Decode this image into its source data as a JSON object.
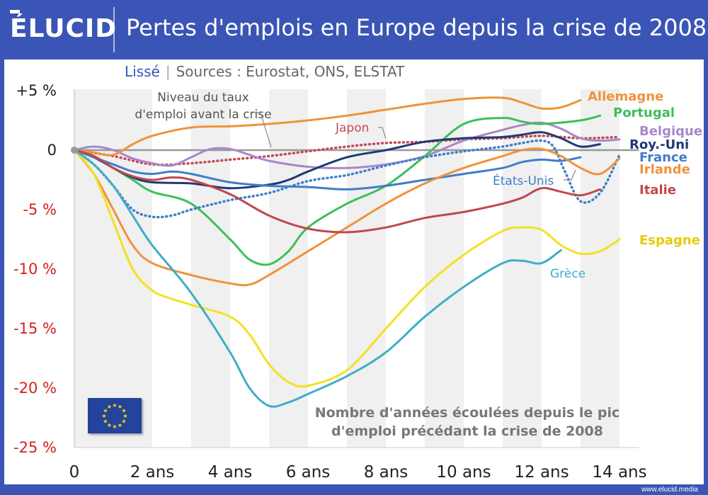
{
  "header": {
    "logo": "ÉLUCID",
    "title": "Pertes d'emplois en Europe depuis la crise de 2008"
  },
  "subtitle": {
    "smoothed": "Lissé",
    "sources": "Sources : Eurostat, ONS, ELSTAT"
  },
  "footer": {
    "url": "www.elucid.media"
  },
  "colors": {
    "brand": "#3a55b5",
    "eu_flag": "#24439c",
    "eu_star": "#ffdd00"
  },
  "chart_data": {
    "type": "line",
    "x_ticks": [
      {
        "value": 0,
        "label": "0"
      },
      {
        "value": 2,
        "label": "2 ans"
      },
      {
        "value": 4,
        "label": "4 ans"
      },
      {
        "value": 6,
        "label": "6 ans"
      },
      {
        "value": 8,
        "label": "8 ans"
      },
      {
        "value": 10,
        "label": "10 ans"
      },
      {
        "value": 12,
        "label": "12 ans"
      },
      {
        "value": 14,
        "label": "14 ans"
      }
    ],
    "y_ticks": [
      {
        "value": 5,
        "label": "+5 %",
        "color": "#222222"
      },
      {
        "value": 0,
        "label": "0",
        "color": "#222222"
      },
      {
        "value": -5,
        "label": "-5 %",
        "color": "#d42020"
      },
      {
        "value": -10,
        "label": "-10 %",
        "color": "#d42020"
      },
      {
        "value": -15,
        "label": "-15 %",
        "color": "#d42020"
      },
      {
        "value": -20,
        "label": "-20 %",
        "color": "#d42020"
      },
      {
        "value": -25,
        "label": "-25 %",
        "color": "#d42020"
      }
    ],
    "xlim": [
      0,
      14.5
    ],
    "ylim": [
      -25,
      5
    ],
    "x_axis_label": "Nombre d'années écoulées depuis le pic\nd'emploi précédant la crise de 2008",
    "reference_label": "Niveau du taux\nd'emploi avant la crise",
    "series": [
      {
        "name": "Allemagne",
        "color": "#f0923a",
        "dotted": false,
        "points": [
          [
            0,
            0
          ],
          [
            0.5,
            -0.2
          ],
          [
            1,
            -0.4
          ],
          [
            1.5,
            0.5
          ],
          [
            2,
            1.2
          ],
          [
            3,
            1.9
          ],
          [
            4,
            2.0
          ],
          [
            5,
            2.2
          ],
          [
            6,
            2.5
          ],
          [
            7,
            2.9
          ],
          [
            8,
            3.4
          ],
          [
            9,
            3.9
          ],
          [
            10,
            4.3
          ],
          [
            11,
            4.4
          ],
          [
            11.5,
            4.0
          ],
          [
            12,
            3.5
          ],
          [
            12.5,
            3.6
          ],
          [
            13,
            4.2
          ]
        ]
      },
      {
        "name": "Portugal",
        "color": "#3cbf5a",
        "dotted": false,
        "points": [
          [
            0,
            0
          ],
          [
            0.5,
            -0.5
          ],
          [
            1,
            -1.5
          ],
          [
            1.5,
            -2.5
          ],
          [
            2,
            -3.5
          ],
          [
            3,
            -4.5
          ],
          [
            4,
            -7.5
          ],
          [
            4.5,
            -9.2
          ],
          [
            5,
            -9.6
          ],
          [
            5.5,
            -8.5
          ],
          [
            6,
            -6.5
          ],
          [
            7,
            -4.5
          ],
          [
            8,
            -3
          ],
          [
            9,
            -0.5
          ],
          [
            10,
            2.2
          ],
          [
            11,
            2.7
          ],
          [
            11.5,
            2.4
          ],
          [
            12,
            2.2
          ],
          [
            13,
            2.5
          ],
          [
            13.5,
            2.9
          ]
        ]
      },
      {
        "name": "Belgique",
        "color": "#a888c8",
        "dotted": false,
        "points": [
          [
            0,
            0
          ],
          [
            0.5,
            0.3
          ],
          [
            1,
            0
          ],
          [
            1.5,
            -0.7
          ],
          [
            2,
            -1.1
          ],
          [
            2.5,
            -1.3
          ],
          [
            3,
            -0.6
          ],
          [
            3.5,
            0.1
          ],
          [
            4,
            0.1
          ],
          [
            4.5,
            -0.4
          ],
          [
            5,
            -0.9
          ],
          [
            6,
            -1.4
          ],
          [
            7,
            -1.5
          ],
          [
            8,
            -1.2
          ],
          [
            9,
            -0.5
          ],
          [
            10,
            0.8
          ],
          [
            11,
            1.7
          ],
          [
            11.5,
            2.1
          ],
          [
            12,
            2.3
          ],
          [
            12.5,
            1.8
          ],
          [
            13,
            1.0
          ],
          [
            13.5,
            0.8
          ],
          [
            14,
            0.9
          ]
        ]
      },
      {
        "name": "Roy.-Uni",
        "color": "#1f3a73",
        "dotted": false,
        "points": [
          [
            0,
            0
          ],
          [
            0.5,
            -0.6
          ],
          [
            1,
            -1.5
          ],
          [
            1.5,
            -2.3
          ],
          [
            2,
            -2.7
          ],
          [
            3,
            -2.8
          ],
          [
            4,
            -3.2
          ],
          [
            5,
            -2.9
          ],
          [
            5.5,
            -2.5
          ],
          [
            6,
            -1.8
          ],
          [
            7,
            -0.6
          ],
          [
            8,
            0
          ],
          [
            9,
            0.7
          ],
          [
            10,
            1.0
          ],
          [
            11,
            1.1
          ],
          [
            11.5,
            1.3
          ],
          [
            12,
            1.5
          ],
          [
            12.5,
            1.0
          ],
          [
            13,
            0.3
          ],
          [
            13.5,
            0.5
          ]
        ]
      },
      {
        "name": "France",
        "color": "#3e7ec8",
        "dotted": false,
        "points": [
          [
            0,
            0
          ],
          [
            0.5,
            -0.6
          ],
          [
            1,
            -1.2
          ],
          [
            1.5,
            -1.8
          ],
          [
            2,
            -2.0
          ],
          [
            2.5,
            -1.8
          ],
          [
            3,
            -2.0
          ],
          [
            4,
            -2.7
          ],
          [
            5,
            -3.0
          ],
          [
            6,
            -3.1
          ],
          [
            7,
            -3.3
          ],
          [
            8,
            -3.0
          ],
          [
            9,
            -2.5
          ],
          [
            10,
            -2.0
          ],
          [
            11,
            -1.5
          ],
          [
            11.5,
            -1.0
          ],
          [
            12,
            -0.8
          ],
          [
            12.5,
            -0.9
          ],
          [
            13,
            -0.6
          ]
        ]
      },
      {
        "name": "Irlande",
        "color": "#f0923a",
        "dotted": false,
        "points": [
          [
            0,
            0
          ],
          [
            0.5,
            -2
          ],
          [
            1,
            -5
          ],
          [
            1.5,
            -8
          ],
          [
            2,
            -9.5
          ],
          [
            3,
            -10.5
          ],
          [
            4,
            -11.2
          ],
          [
            4.5,
            -11.3
          ],
          [
            5,
            -10.5
          ],
          [
            6,
            -8.5
          ],
          [
            7,
            -6.5
          ],
          [
            8,
            -4.5
          ],
          [
            9,
            -2.8
          ],
          [
            10,
            -1.5
          ],
          [
            11,
            -0.5
          ],
          [
            11.5,
            0
          ],
          [
            12,
            0.1
          ],
          [
            12.5,
            -0.5
          ],
          [
            13,
            -1.5
          ],
          [
            13.5,
            -2
          ],
          [
            14,
            -0.7
          ]
        ]
      },
      {
        "name": "États-Unis",
        "color": "#3e7ec8",
        "dotted": true,
        "points": [
          [
            0,
            0
          ],
          [
            0.5,
            -1.2
          ],
          [
            1,
            -3
          ],
          [
            1.5,
            -5
          ],
          [
            2,
            -5.6
          ],
          [
            2.5,
            -5.5
          ],
          [
            3,
            -5.0
          ],
          [
            4,
            -4.2
          ],
          [
            5,
            -3.6
          ],
          [
            6,
            -2.6
          ],
          [
            7,
            -2.1
          ],
          [
            8,
            -1.3
          ],
          [
            9,
            -0.6
          ],
          [
            10,
            -0.1
          ],
          [
            11,
            0.3
          ],
          [
            11.5,
            0.6
          ],
          [
            12,
            0.8
          ],
          [
            12.3,
            0.3
          ],
          [
            12.6,
            -1.8
          ],
          [
            13,
            -4.3
          ],
          [
            13.5,
            -3.6
          ],
          [
            14,
            -0.4
          ]
        ]
      },
      {
        "name": "Japon",
        "color": "#c44a5a",
        "dotted": true,
        "points": [
          [
            0,
            0
          ],
          [
            1,
            -0.5
          ],
          [
            2,
            -1.2
          ],
          [
            3,
            -1.1
          ],
          [
            4,
            -0.8
          ],
          [
            5,
            -0.5
          ],
          [
            6,
            -0.1
          ],
          [
            7,
            0.3
          ],
          [
            8,
            0.6
          ],
          [
            9,
            0.7
          ],
          [
            10,
            0.9
          ],
          [
            11,
            1.0
          ],
          [
            12,
            1.2
          ],
          [
            13,
            1.0
          ],
          [
            14,
            1.1
          ]
        ]
      },
      {
        "name": "Italie",
        "color": "#c0474c",
        "dotted": false,
        "points": [
          [
            0,
            0
          ],
          [
            0.5,
            -0.5
          ],
          [
            1,
            -1.5
          ],
          [
            1.5,
            -2.2
          ],
          [
            2,
            -2.5
          ],
          [
            2.5,
            -2.3
          ],
          [
            3,
            -2.5
          ],
          [
            4,
            -3.7
          ],
          [
            5,
            -5.5
          ],
          [
            6,
            -6.6
          ],
          [
            7,
            -6.9
          ],
          [
            8,
            -6.5
          ],
          [
            9,
            -5.7
          ],
          [
            10,
            -5.2
          ],
          [
            11,
            -4.5
          ],
          [
            11.5,
            -4.0
          ],
          [
            12,
            -3.2
          ],
          [
            12.5,
            -3.5
          ],
          [
            13,
            -3.8
          ],
          [
            13.5,
            -3.3
          ]
        ]
      },
      {
        "name": "Espagne",
        "color": "#f2e21e",
        "dotted": false,
        "points": [
          [
            0,
            0
          ],
          [
            0.5,
            -2
          ],
          [
            1,
            -6
          ],
          [
            1.5,
            -10
          ],
          [
            2,
            -11.8
          ],
          [
            2.5,
            -12.5
          ],
          [
            3,
            -13.0
          ],
          [
            4,
            -14.0
          ],
          [
            4.5,
            -15.5
          ],
          [
            5,
            -18.0
          ],
          [
            5.5,
            -19.5
          ],
          [
            6,
            -19.8
          ],
          [
            7,
            -18.5
          ],
          [
            8,
            -15
          ],
          [
            9,
            -11.5
          ],
          [
            10,
            -8.8
          ],
          [
            11,
            -6.8
          ],
          [
            11.5,
            -6.5
          ],
          [
            12,
            -6.7
          ],
          [
            12.5,
            -8.0
          ],
          [
            13,
            -8.7
          ],
          [
            13.5,
            -8.5
          ],
          [
            14,
            -7.5
          ]
        ]
      },
      {
        "name": "Grèce",
        "color": "#3eaec8",
        "dotted": false,
        "points": [
          [
            0,
            0
          ],
          [
            0.5,
            -1.2
          ],
          [
            1,
            -3
          ],
          [
            1.5,
            -5.5
          ],
          [
            2,
            -8
          ],
          [
            3,
            -12
          ],
          [
            4,
            -17
          ],
          [
            4.5,
            -20.0
          ],
          [
            5,
            -21.5
          ],
          [
            5.5,
            -21.2
          ],
          [
            6,
            -20.5
          ],
          [
            7,
            -19
          ],
          [
            8,
            -17.0
          ],
          [
            9,
            -14
          ],
          [
            10,
            -11.5
          ],
          [
            11,
            -9.5
          ],
          [
            11.5,
            -9.3
          ],
          [
            12,
            -9.5
          ],
          [
            12.5,
            -8.4
          ]
        ]
      }
    ]
  }
}
